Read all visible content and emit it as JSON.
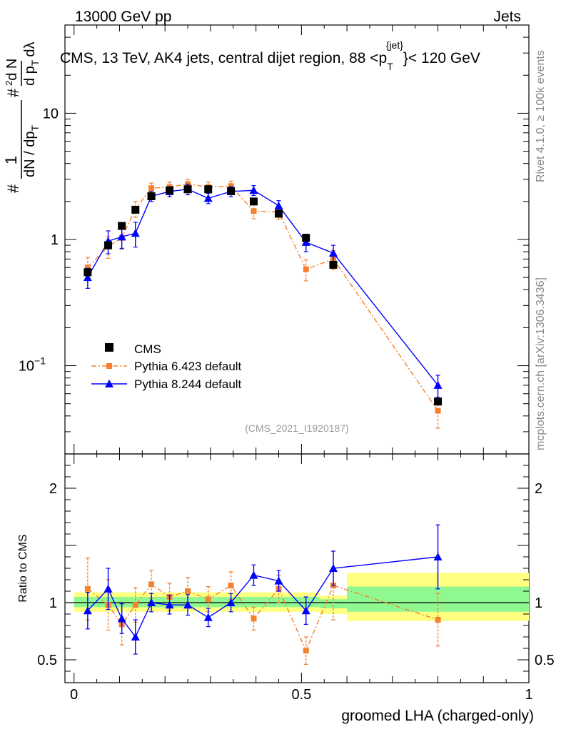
{
  "header": {
    "left": "13000 GeV pp",
    "right": "Jets"
  },
  "side_labels": {
    "rivet": "Rivet 4.1.0, ≥ 100k events",
    "mcplots": "mcplots.cern.ch [arXiv:1306.3436]"
  },
  "chart_data": [
    {
      "type": "scatter",
      "panel": "main",
      "title": "CMS, 13 TeV, AK4 jets, central dijet region, 88 <p_T^{jet}< 120 GeV",
      "title_parts": {
        "pre": "CMS, 13 TeV, AK4 jets, central dijet region, 88 <p",
        "sub": "T",
        "sup": "{jet}",
        "post": "}< 120 GeV"
      },
      "ylabel_parts": {
        "num": "1",
        "den": "dN / dp",
        "den_sub": "T",
        "hash": "#",
        "sup2": "2",
        "right_num": "d N",
        "right_den": "d p",
        "right_den_sub": "T",
        "right_tail": "dλ"
      },
      "yscale": "log",
      "ylim": [
        0.02,
        50
      ],
      "xlim": [
        -0.02,
        1.0
      ],
      "y_ticks": [
        {
          "value": 0.1,
          "label": "10",
          "exp": "−1"
        },
        {
          "value": 1,
          "label": "1",
          "exp": ""
        },
        {
          "value": 10,
          "label": "10",
          "exp": ""
        }
      ],
      "watermark": "(CMS_2021_I1920187)",
      "legend": {
        "position": "bottom-left",
        "entries": [
          "CMS",
          "Pythia 6.423 default",
          "Pythia 8.244 default"
        ]
      },
      "series": [
        {
          "name": "CMS",
          "color": "#000000",
          "marker": "square",
          "x": [
            0.03,
            0.075,
            0.105,
            0.135,
            0.17,
            0.21,
            0.25,
            0.295,
            0.345,
            0.395,
            0.45,
            0.51,
            0.57,
            0.8
          ],
          "y": [
            0.55,
            0.9,
            1.28,
            1.72,
            2.2,
            2.45,
            2.5,
            2.5,
            2.42,
            2.0,
            1.6,
            1.03,
            0.63,
            0.052
          ],
          "err_lo": [
            0.02,
            0.03,
            0.04,
            0.05,
            0.06,
            0.06,
            0.06,
            0.06,
            0.06,
            0.05,
            0.05,
            0.03,
            0.02,
            0.002
          ],
          "err_hi": [
            0.02,
            0.03,
            0.04,
            0.05,
            0.06,
            0.06,
            0.06,
            0.06,
            0.06,
            0.05,
            0.05,
            0.03,
            0.02,
            0.002
          ]
        },
        {
          "name": "Pythia 6.423 default",
          "color": "#f58230",
          "marker": "square-small",
          "line": "dashdot",
          "x": [
            0.03,
            0.075,
            0.105,
            0.135,
            0.17,
            0.21,
            0.25,
            0.295,
            0.345,
            0.395,
            0.45,
            0.51,
            0.57,
            0.8
          ],
          "y": [
            0.6,
            0.88,
            1.03,
            1.75,
            2.55,
            2.6,
            2.75,
            2.6,
            2.65,
            1.68,
            1.65,
            0.58,
            0.7,
            0.044
          ],
          "err_lo": [
            0.12,
            0.17,
            0.2,
            0.25,
            0.25,
            0.25,
            0.25,
            0.25,
            0.25,
            0.22,
            0.2,
            0.11,
            0.12,
            0.012
          ],
          "err_hi": [
            0.12,
            0.17,
            0.2,
            0.25,
            0.25,
            0.25,
            0.25,
            0.25,
            0.25,
            0.22,
            0.2,
            0.11,
            0.12,
            0.012
          ]
        },
        {
          "name": "Pythia 8.244 default",
          "color": "#0000ff",
          "marker": "triangle",
          "line": "solid",
          "x": [
            0.03,
            0.075,
            0.105,
            0.135,
            0.17,
            0.21,
            0.25,
            0.295,
            0.345,
            0.395,
            0.45,
            0.51,
            0.57,
            0.8
          ],
          "y": [
            0.5,
            0.97,
            1.05,
            1.12,
            2.2,
            2.4,
            2.5,
            2.12,
            2.4,
            2.45,
            1.85,
            0.95,
            0.78,
            0.07
          ],
          "err_lo": [
            0.09,
            0.2,
            0.2,
            0.25,
            0.2,
            0.22,
            0.24,
            0.2,
            0.22,
            0.22,
            0.18,
            0.15,
            0.12,
            0.014
          ],
          "err_hi": [
            0.09,
            0.2,
            0.2,
            0.25,
            0.2,
            0.22,
            0.24,
            0.2,
            0.22,
            0.22,
            0.18,
            0.15,
            0.12,
            0.014
          ]
        }
      ]
    },
    {
      "type": "scatter",
      "panel": "ratio",
      "ylabel": "Ratio to CMS",
      "xlabel": "groomed LHA (charged-only)",
      "xlim": [
        -0.02,
        1.0
      ],
      "ylim": [
        0.3,
        2.3
      ],
      "x_ticks": [
        {
          "value": 0,
          "label": "0"
        },
        {
          "value": 0.5,
          "label": "0.5"
        },
        {
          "value": 1,
          "label": "1"
        }
      ],
      "y_ticks": [
        {
          "value": 0.5,
          "label": "0.5"
        },
        {
          "value": 1,
          "label": "1"
        },
        {
          "value": 2,
          "label": "2"
        }
      ],
      "bands": [
        {
          "x0": 0.0,
          "x1": 0.54,
          "yellow": [
            0.92,
            1.09
          ],
          "green": [
            0.96,
            1.05
          ]
        },
        {
          "x0": 0.54,
          "x1": 0.6,
          "yellow": [
            0.9,
            1.06
          ],
          "green": [
            0.95,
            1.03
          ]
        },
        {
          "x0": 0.6,
          "x1": 1.0,
          "yellow": [
            0.84,
            1.26
          ],
          "green": [
            0.92,
            1.14
          ]
        }
      ],
      "series": [
        {
          "name": "Pythia 6.423 default",
          "color": "#f58230",
          "marker": "square-small",
          "line": "dashdot",
          "x": [
            0.03,
            0.075,
            0.105,
            0.135,
            0.17,
            0.21,
            0.25,
            0.295,
            0.345,
            0.395,
            0.45,
            0.51,
            0.57,
            0.8
          ],
          "y": [
            1.12,
            0.98,
            0.81,
            0.98,
            1.16,
            1.05,
            1.1,
            1.03,
            1.15,
            0.86,
            1.12,
            0.58,
            1.15,
            0.85
          ],
          "err_lo": [
            0.27,
            0.22,
            0.18,
            0.15,
            0.12,
            0.12,
            0.12,
            0.11,
            0.12,
            0.1,
            0.12,
            0.12,
            0.3,
            0.23
          ],
          "err_hi": [
            0.27,
            0.22,
            0.18,
            0.15,
            0.12,
            0.12,
            0.12,
            0.11,
            0.12,
            0.1,
            0.12,
            0.12,
            0.3,
            0.23
          ]
        },
        {
          "name": "Pythia 8.244 default",
          "color": "#0000ff",
          "marker": "triangle",
          "line": "solid",
          "x": [
            0.03,
            0.075,
            0.105,
            0.135,
            0.17,
            0.21,
            0.25,
            0.295,
            0.345,
            0.395,
            0.45,
            0.51,
            0.57,
            0.8
          ],
          "y": [
            0.93,
            1.12,
            0.86,
            0.7,
            1.0,
            0.98,
            0.98,
            0.87,
            1.0,
            1.24,
            1.19,
            0.93,
            1.3,
            1.4
          ],
          "err_lo": [
            0.16,
            0.18,
            0.13,
            0.15,
            0.08,
            0.08,
            0.09,
            0.08,
            0.08,
            0.09,
            0.09,
            0.12,
            0.15,
            0.28
          ],
          "err_hi": [
            0.16,
            0.18,
            0.13,
            0.15,
            0.08,
            0.08,
            0.09,
            0.08,
            0.08,
            0.09,
            0.09,
            0.12,
            0.15,
            0.28
          ]
        }
      ]
    }
  ]
}
